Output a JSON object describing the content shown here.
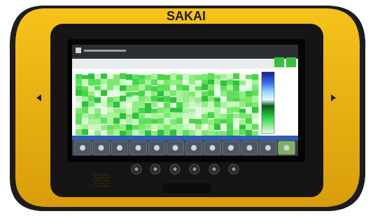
{
  "brand": "SAKAI"
}
